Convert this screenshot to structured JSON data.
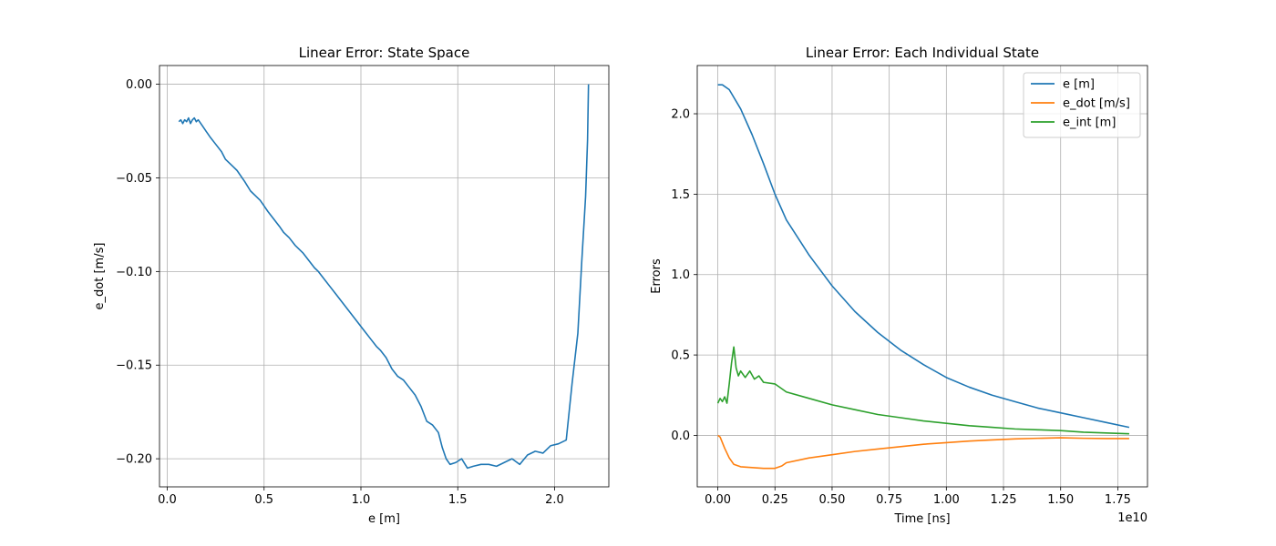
{
  "chart_data": [
    {
      "type": "line",
      "title": "Linear Error: State Space",
      "xlabel": "e [m]",
      "ylabel": "e_dot [m/s]",
      "xlim": [
        -0.04,
        2.28
      ],
      "ylim": [
        -0.215,
        0.01
      ],
      "grid": true,
      "x_ticks": [
        0.0,
        0.5,
        1.0,
        1.5,
        2.0
      ],
      "x_tick_labels": [
        "0.0",
        "0.5",
        "1.0",
        "1.5",
        "2.0"
      ],
      "y_ticks": [
        0.0,
        -0.05,
        -0.1,
        -0.15,
        -0.2
      ],
      "y_tick_labels": [
        "0.00",
        "−0.05",
        "−0.10",
        "−0.15",
        "−0.20"
      ],
      "series": [
        {
          "color": "#1f77b4",
          "x": [
            0.06,
            0.07,
            0.08,
            0.09,
            0.1,
            0.11,
            0.12,
            0.13,
            0.14,
            0.15,
            0.16,
            0.18,
            0.2,
            0.22,
            0.25,
            0.28,
            0.3,
            0.33,
            0.36,
            0.4,
            0.43,
            0.46,
            0.48,
            0.5,
            0.52,
            0.55,
            0.58,
            0.6,
            0.63,
            0.66,
            0.7,
            0.73,
            0.76,
            0.78,
            0.81,
            0.84,
            0.87,
            0.9,
            0.93,
            0.96,
            0.99,
            1.02,
            1.05,
            1.08,
            1.1,
            1.13,
            1.16,
            1.19,
            1.22,
            1.25,
            1.28,
            1.31,
            1.34,
            1.37,
            1.4,
            1.42,
            1.44,
            1.46,
            1.49,
            1.52,
            1.55,
            1.58,
            1.62,
            1.66,
            1.7,
            1.74,
            1.78,
            1.82,
            1.86,
            1.9,
            1.94,
            1.98,
            2.02,
            2.06,
            2.09,
            2.12,
            2.14,
            2.16,
            2.17,
            2.175
          ],
          "y": [
            -0.02,
            -0.019,
            -0.021,
            -0.019,
            -0.02,
            -0.018,
            -0.021,
            -0.019,
            -0.018,
            -0.02,
            -0.019,
            -0.022,
            -0.025,
            -0.028,
            -0.032,
            -0.036,
            -0.04,
            -0.043,
            -0.046,
            -0.052,
            -0.057,
            -0.06,
            -0.062,
            -0.065,
            -0.068,
            -0.072,
            -0.076,
            -0.079,
            -0.082,
            -0.086,
            -0.09,
            -0.094,
            -0.098,
            -0.1,
            -0.104,
            -0.108,
            -0.112,
            -0.116,
            -0.12,
            -0.124,
            -0.128,
            -0.132,
            -0.136,
            -0.14,
            -0.142,
            -0.146,
            -0.152,
            -0.156,
            -0.158,
            -0.162,
            -0.166,
            -0.172,
            -0.18,
            -0.182,
            -0.186,
            -0.194,
            -0.2,
            -0.203,
            -0.202,
            -0.2,
            -0.205,
            -0.204,
            -0.203,
            -0.203,
            -0.204,
            -0.202,
            -0.2,
            -0.203,
            -0.198,
            -0.196,
            -0.197,
            -0.193,
            -0.192,
            -0.19,
            -0.16,
            -0.133,
            -0.095,
            -0.06,
            -0.03,
            0.0
          ]
        }
      ]
    },
    {
      "type": "line",
      "title": "Linear Error: Each Individual State",
      "xlabel": "Time [ns]",
      "ylabel": "Errors",
      "x_offset_text": "1e10",
      "xlim": [
        -0.09,
        1.88
      ],
      "ylim": [
        -0.32,
        2.3
      ],
      "grid": true,
      "legend_position": "top-right",
      "x_ticks": [
        0.0,
        0.25,
        0.5,
        0.75,
        1.0,
        1.25,
        1.5,
        1.75
      ],
      "x_tick_labels": [
        "0.00",
        "0.25",
        "0.50",
        "0.75",
        "1.00",
        "1.25",
        "1.50",
        "1.75"
      ],
      "y_ticks": [
        0.0,
        0.5,
        1.0,
        1.5,
        2.0
      ],
      "y_tick_labels": [
        "0.0",
        "0.5",
        "1.0",
        "1.5",
        "2.0"
      ],
      "series": [
        {
          "name": "e [m]",
          "color": "#1f77b4",
          "x": [
            0.0,
            0.02,
            0.05,
            0.1,
            0.15,
            0.2,
            0.25,
            0.3,
            0.4,
            0.5,
            0.6,
            0.7,
            0.8,
            0.9,
            1.0,
            1.1,
            1.2,
            1.3,
            1.4,
            1.5,
            1.6,
            1.7,
            1.8
          ],
          "y": [
            2.18,
            2.18,
            2.15,
            2.03,
            1.87,
            1.69,
            1.5,
            1.34,
            1.12,
            0.93,
            0.77,
            0.64,
            0.53,
            0.44,
            0.36,
            0.3,
            0.25,
            0.21,
            0.17,
            0.14,
            0.11,
            0.08,
            0.05
          ]
        },
        {
          "name": "e_dot [m/s]",
          "color": "#ff7f0e",
          "x": [
            0.0,
            0.01,
            0.03,
            0.05,
            0.07,
            0.1,
            0.15,
            0.2,
            0.25,
            0.28,
            0.3,
            0.4,
            0.5,
            0.6,
            0.7,
            0.8,
            0.9,
            1.0,
            1.1,
            1.2,
            1.3,
            1.4,
            1.5,
            1.6,
            1.7,
            1.8
          ],
          "y": [
            0.0,
            -0.01,
            -0.08,
            -0.14,
            -0.18,
            -0.195,
            -0.2,
            -0.205,
            -0.205,
            -0.19,
            -0.17,
            -0.14,
            -0.12,
            -0.1,
            -0.085,
            -0.07,
            -0.055,
            -0.045,
            -0.035,
            -0.028,
            -0.022,
            -0.018,
            -0.015,
            -0.018,
            -0.02,
            -0.02
          ]
        },
        {
          "name": "e_int [m]",
          "color": "#2ca02c",
          "x": [
            0.0,
            0.01,
            0.02,
            0.03,
            0.04,
            0.05,
            0.06,
            0.07,
            0.08,
            0.09,
            0.1,
            0.12,
            0.14,
            0.16,
            0.18,
            0.2,
            0.25,
            0.3,
            0.4,
            0.5,
            0.6,
            0.7,
            0.8,
            0.9,
            1.0,
            1.1,
            1.2,
            1.3,
            1.4,
            1.5,
            1.6,
            1.7,
            1.8
          ],
          "y": [
            0.2,
            0.23,
            0.21,
            0.24,
            0.2,
            0.32,
            0.45,
            0.55,
            0.42,
            0.37,
            0.4,
            0.36,
            0.4,
            0.35,
            0.37,
            0.33,
            0.32,
            0.27,
            0.23,
            0.19,
            0.16,
            0.13,
            0.11,
            0.09,
            0.075,
            0.06,
            0.05,
            0.04,
            0.035,
            0.03,
            0.02,
            0.015,
            0.01
          ]
        }
      ]
    }
  ]
}
